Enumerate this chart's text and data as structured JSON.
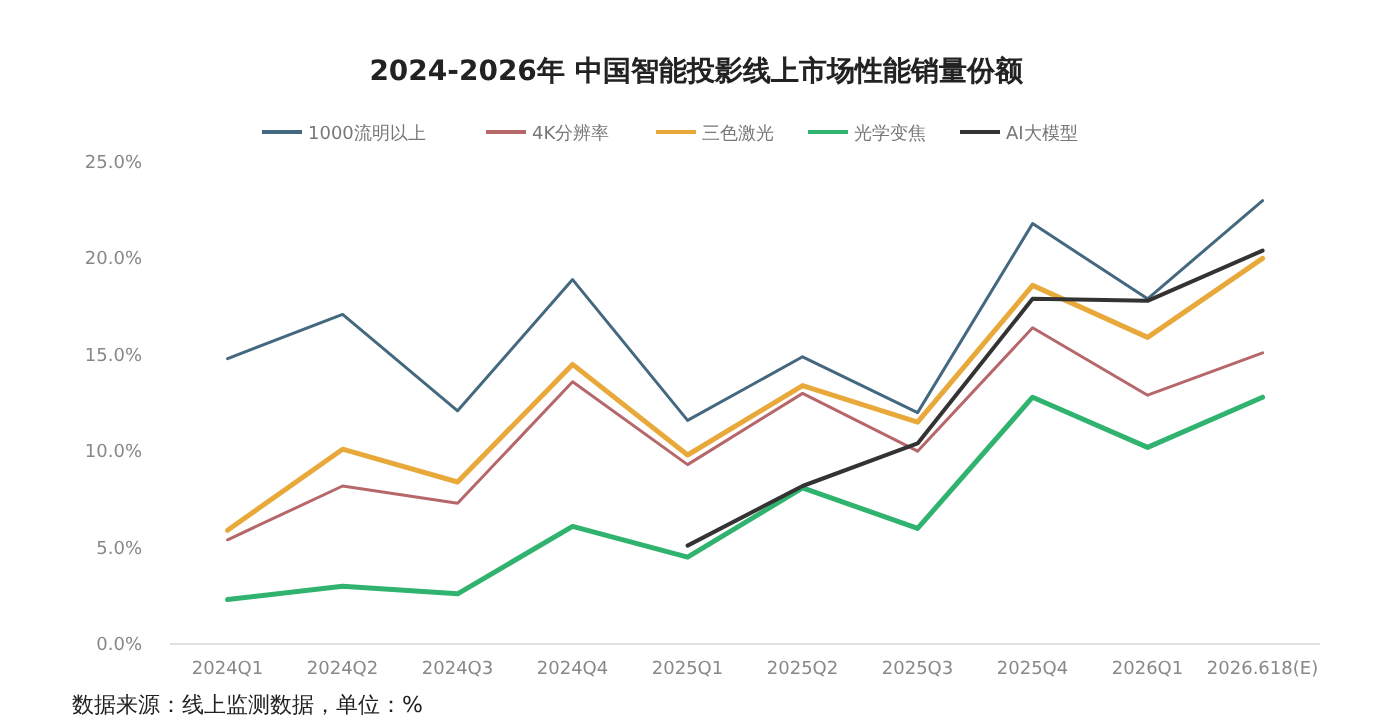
{
  "chart_data": {
    "type": "line",
    "title": "2024-2026年 中国智能投影线上市场性能销量份额",
    "categories": [
      "2024Q1",
      "2024Q2",
      "2024Q3",
      "2024Q4",
      "2025Q1",
      "2025Q2",
      "2025Q3",
      "2025Q4",
      "2026Q1",
      "2026.618(E)"
    ],
    "series": [
      {
        "name": "1000流明以上",
        "color": "#44687f",
        "values": [
          14.8,
          17.1,
          12.1,
          18.9,
          11.6,
          14.9,
          12.0,
          21.8,
          17.9,
          23.0
        ]
      },
      {
        "name": "4K分辨率",
        "color": "#b5676a",
        "values": [
          5.4,
          8.2,
          7.3,
          13.6,
          9.3,
          13.0,
          10.0,
          16.4,
          12.9,
          15.1
        ]
      },
      {
        "name": "三色激光",
        "color": "#e8a93a",
        "values": [
          5.9,
          10.1,
          8.4,
          14.5,
          9.8,
          13.4,
          11.5,
          18.6,
          15.9,
          20.0
        ]
      },
      {
        "name": "光学变焦",
        "color": "#2fb36e",
        "values": [
          2.3,
          3.0,
          2.6,
          6.1,
          4.5,
          8.1,
          6.0,
          12.8,
          10.2,
          12.8
        ]
      },
      {
        "name": "AI大模型",
        "color": "#333333",
        "values": [
          null,
          null,
          null,
          null,
          5.1,
          8.2,
          10.4,
          17.9,
          17.8,
          20.4
        ]
      }
    ],
    "ylim": [
      0,
      25
    ],
    "yticks": [
      {
        "value": 0,
        "label": "0.0%"
      },
      {
        "value": 5,
        "label": "5.0%"
      },
      {
        "value": 10,
        "label": "10.0%"
      },
      {
        "value": 15,
        "label": "15.0%"
      },
      {
        "value": 20,
        "label": "20.0%"
      },
      {
        "value": 25,
        "label": "25.0%"
      }
    ],
    "grid": false,
    "legend": "top",
    "marker": "none",
    "line_style": "solid",
    "annotations": [
      "数据来源：线上监测数据，单位：%"
    ]
  }
}
